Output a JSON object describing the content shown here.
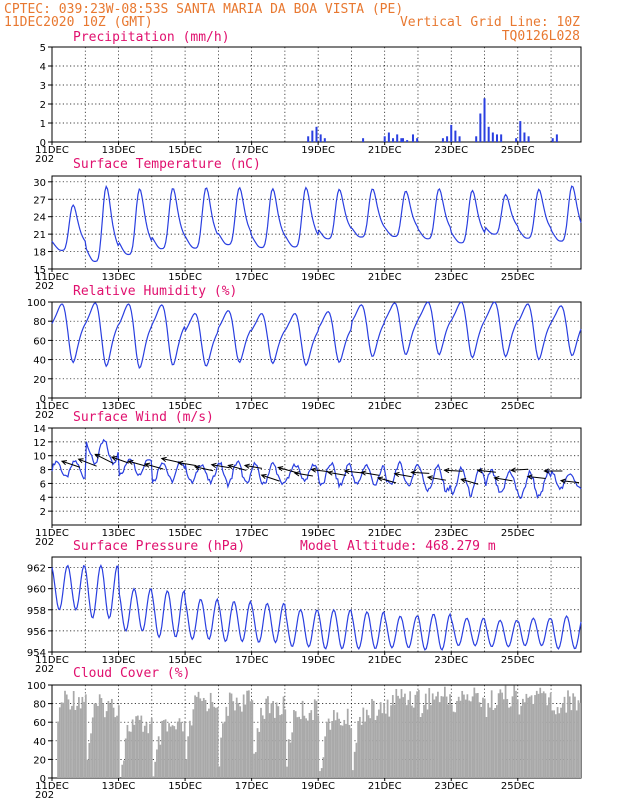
{
  "header": {
    "left_line1": "CPTEC:  039:23W-08:53S  SANTA MARIA DA BOA VISTA (PE)",
    "left_line2": "11DEC2020 10Z (GMT)",
    "right_line2": "Vertical Grid Line: 10Z",
    "right_line3": "TQ0126L028",
    "year_stub": "202"
  },
  "colors": {
    "header": "#e87830",
    "title": "#e0106e",
    "line": "#2a3fe0",
    "bar": "#2a3fe0",
    "wind_arrow": "#000000",
    "cloud": "#a9a9a9"
  },
  "x_axis": {
    "start_day": 11,
    "end_day": 26.9,
    "labels": [
      "11DEC",
      "13DEC",
      "15DEC",
      "17DEC",
      "19DEC",
      "21DEC",
      "23DEC",
      "25DEC"
    ],
    "label_days": [
      11,
      13,
      15,
      17,
      19,
      21,
      23,
      25
    ]
  },
  "chart_data": [
    {
      "type": "bar",
      "title": "Precipitation (mm/h)",
      "ylim": [
        0,
        5
      ],
      "yticks": [
        "0",
        "1",
        "2",
        "3",
        "4",
        "5"
      ],
      "sampling": "3-hourly from 11DEC 10Z",
      "events": [
        {
          "day": 18.7,
          "values": [
            0.3,
            0.6,
            0.8,
            0.4,
            0.2
          ]
        },
        {
          "day": 20.35,
          "values": [
            0.2
          ]
        },
        {
          "day": 21.0,
          "values": [
            0.3,
            0.5,
            0.2,
            0.4,
            0.2
          ]
        },
        {
          "day": 21.55,
          "values": [
            0.2,
            0.1
          ]
        },
        {
          "day": 21.85,
          "values": [
            0.4,
            0.2
          ]
        },
        {
          "day": 22.75,
          "values": [
            0.2,
            0.3,
            0.9,
            0.6,
            0.3
          ]
        },
        {
          "day": 23.75,
          "values": [
            0.3,
            1.5,
            2.3,
            0.8,
            0.5,
            0.4,
            0.4
          ]
        },
        {
          "day": 24.95,
          "values": [
            0.2,
            1.1,
            0.5,
            0.3
          ]
        },
        {
          "day": 26.05,
          "values": [
            0.2,
            0.4
          ]
        }
      ]
    },
    {
      "type": "line",
      "title": "Surface Temperature (nC)",
      "ylim": [
        15,
        31
      ],
      "yticks": [
        "15",
        "18",
        "21",
        "24",
        "27",
        "30"
      ],
      "daily_min": [
        18.2,
        16.3,
        17.5,
        18.5,
        18.6,
        19.2,
        18.7,
        18.8,
        20.2,
        20.5,
        20.6,
        20.2,
        19.5,
        21.0,
        20.3,
        19.8
      ],
      "daily_max": [
        26.0,
        29.2,
        28.8,
        28.9,
        29.0,
        29.0,
        28.8,
        29.0,
        28.7,
        28.8,
        28.4,
        28.8,
        28.5,
        27.8,
        28.7,
        29.3
      ]
    },
    {
      "type": "line",
      "title": "Relative Humidity (%)",
      "ylim": [
        0,
        100
      ],
      "yticks": [
        "0",
        "20",
        "40",
        "60",
        "80",
        "100"
      ],
      "daily_min": [
        37,
        33,
        31,
        34,
        33,
        37,
        36,
        34,
        37,
        43,
        45,
        45,
        42,
        43,
        40,
        44
      ],
      "daily_max": [
        98,
        99,
        98,
        97,
        88,
        91,
        88,
        88,
        90,
        97,
        99,
        100,
        100,
        100,
        98,
        96
      ]
    },
    {
      "type": "line",
      "title": "Surface Wind (m/s)",
      "ylim": [
        0,
        14
      ],
      "yticks": [
        "2",
        "4",
        "6",
        "8",
        "10",
        "12",
        "14"
      ],
      "daily_low": [
        6.6,
        8.5,
        7.0,
        6.0,
        5.8,
        5.5,
        5.5,
        6.2,
        5.3,
        5.5,
        5.3,
        4.5,
        4.0,
        4.0,
        3.5,
        5.0
      ],
      "daily_high": [
        9.5,
        12.5,
        10.0,
        9.5,
        9.2,
        9.5,
        9.2,
        9.0,
        9.3,
        9.0,
        9.2,
        8.8,
        8.5,
        8.2,
        8.0,
        7.8
      ],
      "arrows": [
        {
          "day": 11.3,
          "speed": 9.2,
          "dx": 18,
          "dy": 6
        },
        {
          "day": 11.8,
          "speed": 9.5,
          "dx": 18,
          "dy": 7
        },
        {
          "day": 12.3,
          "speed": 10.2,
          "dx": 18,
          "dy": 9
        },
        {
          "day": 12.8,
          "speed": 9.8,
          "dx": 17,
          "dy": 6
        },
        {
          "day": 13.3,
          "speed": 9.2,
          "dx": 18,
          "dy": 5
        },
        {
          "day": 13.8,
          "speed": 8.8,
          "dx": 18,
          "dy": 5
        },
        {
          "day": 14.3,
          "speed": 9.6,
          "dx": 18,
          "dy": 4
        },
        {
          "day": 14.8,
          "speed": 9.0,
          "dx": 18,
          "dy": 3
        },
        {
          "day": 15.3,
          "speed": 8.4,
          "dx": 18,
          "dy": 4
        },
        {
          "day": 15.8,
          "speed": 8.7,
          "dx": 18,
          "dy": 3
        },
        {
          "day": 16.3,
          "speed": 8.6,
          "dx": 18,
          "dy": 5
        },
        {
          "day": 16.8,
          "speed": 8.6,
          "dx": 17,
          "dy": 3
        },
        {
          "day": 17.3,
          "speed": 7.2,
          "dx": 18,
          "dy": 6
        },
        {
          "day": 17.8,
          "speed": 8.3,
          "dx": 18,
          "dy": 5
        },
        {
          "day": 18.3,
          "speed": 7.5,
          "dx": 18,
          "dy": 3
        },
        {
          "day": 18.8,
          "speed": 8.0,
          "dx": 17,
          "dy": 2
        },
        {
          "day": 19.3,
          "speed": 7.6,
          "dx": 18,
          "dy": 3
        },
        {
          "day": 19.8,
          "speed": 7.8,
          "dx": 18,
          "dy": 2
        },
        {
          "day": 20.3,
          "speed": 7.6,
          "dx": 18,
          "dy": 3
        },
        {
          "day": 20.8,
          "speed": 6.8,
          "dx": 18,
          "dy": 5
        },
        {
          "day": 21.3,
          "speed": 7.4,
          "dx": 17,
          "dy": 3
        },
        {
          "day": 21.8,
          "speed": 7.6,
          "dx": 18,
          "dy": 1
        },
        {
          "day": 22.3,
          "speed": 6.9,
          "dx": 18,
          "dy": 3
        },
        {
          "day": 22.8,
          "speed": 7.9,
          "dx": 18,
          "dy": 1
        },
        {
          "day": 23.3,
          "speed": 6.6,
          "dx": 17,
          "dy": 5
        },
        {
          "day": 23.8,
          "speed": 7.9,
          "dx": 18,
          "dy": 2
        },
        {
          "day": 24.3,
          "speed": 6.8,
          "dx": 18,
          "dy": 3
        },
        {
          "day": 24.8,
          "speed": 7.9,
          "dx": 17,
          "dy": -1
        },
        {
          "day": 25.3,
          "speed": 7.0,
          "dx": 18,
          "dy": 2
        },
        {
          "day": 25.8,
          "speed": 7.8,
          "dx": 18,
          "dy": 0
        },
        {
          "day": 26.3,
          "speed": 6.4,
          "dx": 18,
          "dy": 2
        }
      ]
    },
    {
      "type": "line",
      "title": "Surface Pressure (hPa)",
      "subtitle": "Model Altitude: 468.279  m",
      "ylim": [
        954,
        963
      ],
      "yticks": [
        "954",
        "956",
        "958",
        "960",
        "962"
      ],
      "daily_max": [
        962.2,
        962.2,
        960.0,
        959.8,
        959.0,
        958.8,
        958.6,
        958.0,
        958.0,
        957.8,
        957.4,
        957.6,
        957.2,
        957.0,
        957.2,
        957.4
      ],
      "daily_min": [
        958.0,
        957.2,
        956.0,
        955.4,
        955.2,
        955.0,
        954.9,
        954.5,
        954.3,
        954.3,
        954.4,
        954.2,
        954.6,
        954.5,
        954.6,
        954.3
      ]
    },
    {
      "type": "area",
      "title": "Cloud Cover (%)",
      "ylim": [
        0,
        100
      ],
      "yticks": [
        "0",
        "20",
        "40",
        "60",
        "80",
        "100"
      ],
      "daily_cloud": [
        98,
        90,
        70,
        65,
        95,
        95,
        88,
        85,
        75,
        85,
        100,
        100,
        100,
        100,
        100,
        95
      ]
    }
  ]
}
